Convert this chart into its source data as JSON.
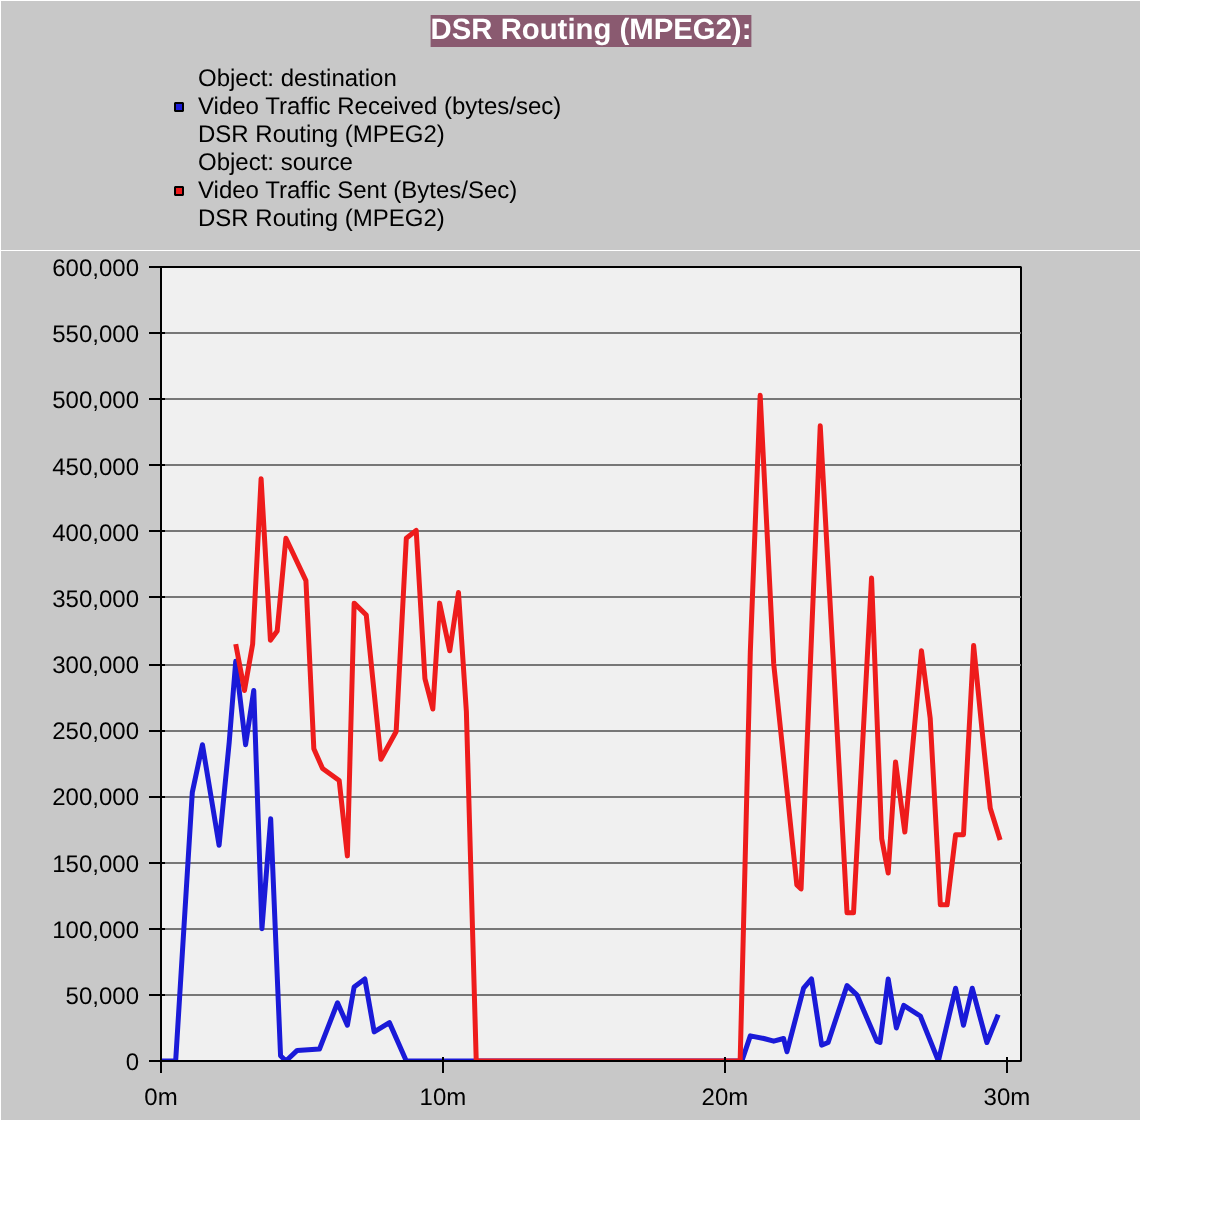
{
  "chart_data": {
    "type": "line",
    "title": "DSR Routing (MPEG2):",
    "xlim": [
      0,
      30.5
    ],
    "xticks": [
      {
        "value": 0,
        "label": "0m"
      },
      {
        "value": 10,
        "label": "10m"
      },
      {
        "value": 20,
        "label": "20m"
      },
      {
        "value": 30,
        "label": "30m"
      }
    ],
    "ylim": [
      0,
      600000
    ],
    "yticks": [
      {
        "value": 0,
        "label": "0"
      },
      {
        "value": 50000,
        "label": "50,000"
      },
      {
        "value": 100000,
        "label": "100,000"
      },
      {
        "value": 150000,
        "label": "150,000"
      },
      {
        "value": 200000,
        "label": "200,000"
      },
      {
        "value": 250000,
        "label": "250,000"
      },
      {
        "value": 300000,
        "label": "300,000"
      },
      {
        "value": 350000,
        "label": "350,000"
      },
      {
        "value": 400000,
        "label": "400,000"
      },
      {
        "value": 450000,
        "label": "450,000"
      },
      {
        "value": 500000,
        "label": "500,000"
      },
      {
        "value": 550000,
        "label": "550,000"
      },
      {
        "value": 600000,
        "label": "600,000"
      }
    ],
    "grid": "y",
    "legend": "top",
    "marker": "none",
    "line_style": "solid",
    "series": [
      {
        "name": "Object: destination\nVideo Traffic Received (bytes/sec)\nDSR Routing (MPEG2)",
        "color": "#1a1ad8",
        "x": [
          0,
          0.52,
          1.11,
          1.47,
          2.06,
          2.42,
          2.65,
          3.0,
          3.29,
          3.58,
          3.89,
          4.24,
          4.43,
          4.83,
          5.62,
          6.26,
          6.61,
          6.85,
          7.23,
          7.56,
          8.1,
          8.7,
          20.6,
          20.9,
          21.38,
          21.73,
          22.08,
          22.2,
          22.79,
          23.07,
          23.43,
          23.66,
          24.33,
          24.68,
          25.39,
          25.5,
          25.79,
          26.08,
          26.34,
          26.93,
          27.57,
          28.18,
          28.46,
          28.77,
          29.29,
          29.69
        ],
        "values": [
          0,
          0,
          203000,
          239000,
          163000,
          241000,
          302000,
          239000,
          280000,
          100000,
          183000,
          4000,
          0,
          8000,
          9000,
          44000,
          27000,
          56000,
          62000,
          22000,
          29000,
          0,
          0,
          19000,
          17000,
          15000,
          17000,
          7000,
          55000,
          62000,
          12000,
          14000,
          57000,
          50000,
          15000,
          14000,
          62000,
          25000,
          42000,
          34000,
          0,
          55000,
          27000,
          55000,
          14000,
          35000
        ]
      },
      {
        "name": "Object: source\nVideo Traffic Sent (Bytes/Sec)\nDSR Routing (MPEG2)",
        "color": "#ee1c1c",
        "x": [
          2.65,
          2.96,
          3.25,
          3.55,
          3.88,
          4.12,
          4.43,
          5.14,
          5.42,
          5.73,
          6.32,
          6.61,
          6.85,
          7.28,
          7.8,
          8.34,
          8.7,
          9.05,
          9.36,
          9.64,
          9.88,
          10.24,
          10.55,
          10.83,
          11.18,
          20.54,
          20.9,
          21.25,
          21.73,
          22.55,
          22.7,
          23.38,
          23.85,
          24.33,
          24.56,
          25.2,
          25.56,
          25.79,
          26.05,
          26.38,
          26.97,
          27.28,
          27.64,
          27.88,
          28.18,
          28.46,
          28.82,
          29.17,
          29.41,
          29.76
        ],
        "values": [
          315000,
          280000,
          315000,
          440000,
          318000,
          325000,
          395000,
          363000,
          236000,
          221000,
          212000,
          155000,
          346000,
          337000,
          228000,
          249000,
          395000,
          401000,
          289000,
          266000,
          346000,
          310000,
          354000,
          264000,
          0,
          0,
          309000,
          503000,
          300000,
          133000,
          130000,
          480000,
          300000,
          112000,
          112000,
          365000,
          168000,
          142000,
          226000,
          173000,
          310000,
          259000,
          118000,
          118000,
          171000,
          171000,
          314000,
          239000,
          191000,
          167000
        ]
      }
    ]
  }
}
